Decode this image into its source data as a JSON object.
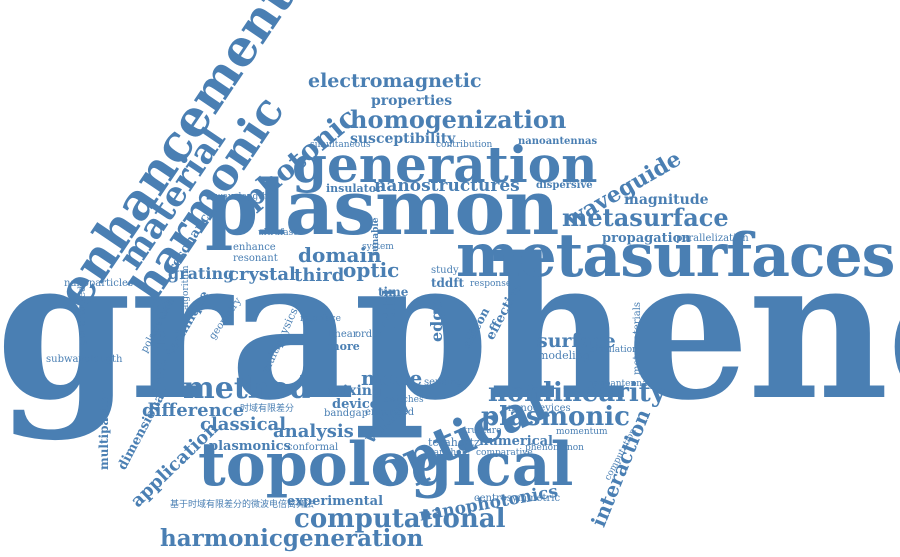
{
  "words": {
    "graphene": "graphene",
    "plasmon": "plasmon",
    "metasurfaces": "metasurfaces",
    "topological": "topological",
    "generation": "generation",
    "optical": "optical",
    "enhancement": "enhancement",
    "harmonic": "harmonic",
    "material": "material",
    "homogenization": "homogenization",
    "electromagnetic": "electromagnetic",
    "metasurface": "metasurface",
    "nonlinearity": "nonlinearity",
    "method": "method",
    "computational": "computational",
    "harmonicgeneration": "harmonicgeneration",
    "nanophotonics": "nanophotonics",
    "plasmonic": "plasmonic",
    "photonic": "photonic",
    "nanostructures": "nanostructures",
    "waveguide": "waveguide",
    "magnitude": "magnitude",
    "propagation": "propagation",
    "domain": "domain",
    "crystal": "crystal",
    "third": "third",
    "optic": "optic",
    "grating": "grating",
    "difference": "difference",
    "classical": "classical",
    "analysis": "analysis",
    "application": "application",
    "dimensional": "dimensional",
    "multipactor": "multipactor",
    "frequency": "frequency",
    "interaction": "interaction",
    "properties": "properties",
    "susceptibility": "susceptibility",
    "insulator": "insulator",
    "dispersive": "dispersive",
    "nanoantennas": "nanoantennas",
    "surface": "surface",
    "experimental": "experimental",
    "centrosymmetric": "centrosymmetric",
    "numerical": "numerical",
    "mode": "mode",
    "fdtd": "fdtd",
    "edge": "edge",
    "effective": "effective",
    "valley": "valley",
    "mixing": "mixing",
    "device": "device",
    "terahertz": "terahertz",
    "metamaterials": "metamaterials",
    "plasmonics": "plasmonics",
    "conformal": "conformal",
    "nanoparticles": "nanoparticles",
    "subwavelength": "subwavelength",
    "resonance": "resonance",
    "time": "time",
    "tddft": "tddft",
    "resonant": "resonant",
    "technique": "technique",
    "polarization": "polarization",
    "sensing": "sensing",
    "nanodevices": "nanodevices",
    "parallelization": "parallelization",
    "nanoantenna": "nanoantenna",
    "modeling": "modeling",
    "simulation": "simulation",
    "comparative": "comparative",
    "phenomenon": "phenomenon",
    "momentum": "momentum",
    "structure": "structure",
    "more": "more",
    "order": "order",
    "linear": "linear",
    "silicon": "silicon",
    "generalized": "generalized",
    "geometry": "geometry",
    "multiphysics": "multiphysics",
    "enhanced": "enhanced",
    "switches": "switches",
    "bandgap": "bandgap",
    "computation": "computation",
    "response": "response",
    "tunable": "tunable",
    "study": "study",
    "enhance": "enhance",
    "contribution": "contribution",
    "simultaneous": "simultaneous",
    "ultrafast": "ultrafast",
    "system": "system",
    "algorithm": "algorithm",
    "interface": "interface",
    "nanohole": "nanohole",
    "wavelength": "wavelength",
    "cjk1": "基于时域有限差分的微波电倍离算法",
    "cjk2": "时域有限差分"
  },
  "colors": {
    "word": "#4a7fb3",
    "background": "#ffffff"
  }
}
